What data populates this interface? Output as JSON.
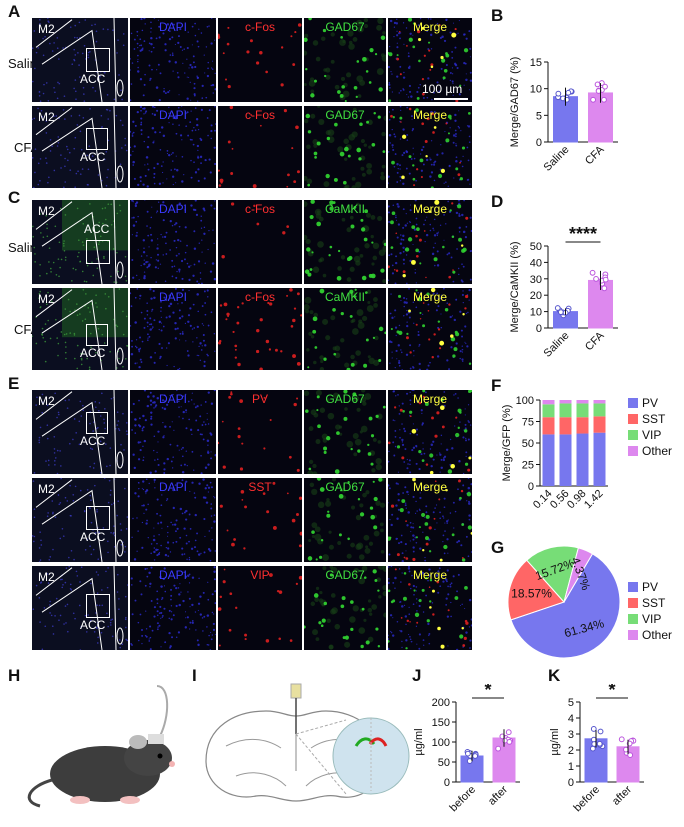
{
  "panels": {
    "A": "A",
    "B": "B",
    "C": "C",
    "D": "D",
    "E": "E",
    "F": "F",
    "G": "G",
    "H": "H",
    "I": "I",
    "J": "J",
    "K": "K"
  },
  "rows": {
    "saline": "Saline",
    "cfa": "CFA"
  },
  "brain": {
    "m2": "M2",
    "acc": "ACC"
  },
  "channels": {
    "dapi": "DAPI",
    "cfos": "c-Fos",
    "gad67": "GAD67",
    "camkii": "CaMKII",
    "merge": "Merge",
    "pv": "PV",
    "sst": "SST",
    "vip": "VIP"
  },
  "scalebar": "100 µm",
  "colors": {
    "dapi": "#3a3aff",
    "red": "#ff3030",
    "green": "#40e040",
    "merge": "#ffff40",
    "bar_blue": "#7777ee",
    "bar_pink": "#dd88ee",
    "pv": "#7777ee",
    "sst": "#ff6666",
    "vip": "#77dd77",
    "other": "#dd88ee"
  },
  "chart_data": [
    {
      "id": "B",
      "type": "bar",
      "categories": [
        "Saline",
        "CFA"
      ],
      "values": [
        8.5,
        9.2
      ],
      "ylabel": "Merge/GAD67 (%)",
      "ylim": [
        0,
        15
      ],
      "yticks": [
        0,
        5,
        10,
        15
      ]
    },
    {
      "id": "D",
      "type": "bar",
      "categories": [
        "Saline",
        "CFA"
      ],
      "values": [
        10,
        29
      ],
      "ylabel": "Merge/CaMKII (%)",
      "ylim": [
        0,
        50
      ],
      "yticks": [
        0,
        10,
        20,
        30,
        40,
        50
      ],
      "annotation": "****"
    },
    {
      "id": "F",
      "type": "bar",
      "stacked": true,
      "categories": [
        "0.14",
        "0.56",
        "0.98",
        "1.42"
      ],
      "ylabel": "Merge/GFP (%)",
      "ylim": [
        0,
        100
      ],
      "yticks": [
        0,
        25,
        50,
        75,
        100
      ],
      "series": [
        {
          "name": "PV",
          "values": [
            60,
            60,
            61,
            62
          ]
        },
        {
          "name": "SST",
          "values": [
            20,
            20,
            19,
            19
          ]
        },
        {
          "name": "VIP",
          "values": [
            15,
            16,
            16,
            15
          ]
        },
        {
          "name": "Other",
          "values": [
            5,
            4,
            4,
            4
          ]
        }
      ]
    },
    {
      "id": "G",
      "type": "pie",
      "labels": [
        "PV",
        "SST",
        "VIP",
        "Other"
      ],
      "values": [
        61.34,
        18.57,
        15.72,
        4.37
      ],
      "value_labels": [
        "61.34%",
        "18.57%",
        "15.72%",
        "4.37%"
      ]
    },
    {
      "id": "J",
      "type": "bar",
      "categories": [
        "before",
        "after"
      ],
      "values": [
        65,
        110
      ],
      "ylabel": "µg/ml",
      "ylim": [
        0,
        200
      ],
      "yticks": [
        0,
        50,
        100,
        150,
        200
      ],
      "annotation": "*"
    },
    {
      "id": "K",
      "type": "bar",
      "categories": [
        "before",
        "after"
      ],
      "values": [
        2.7,
        2.2
      ],
      "ylabel": "µg/ml",
      "ylim": [
        0,
        5
      ],
      "yticks": [
        0,
        1,
        2,
        3,
        4,
        5
      ],
      "annotation": "*"
    }
  ]
}
